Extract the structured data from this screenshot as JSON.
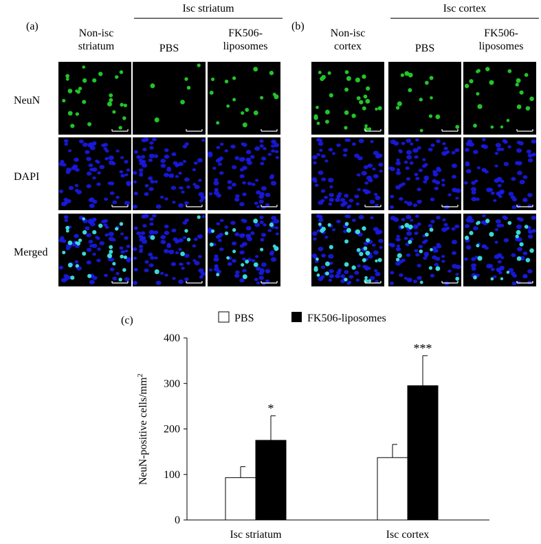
{
  "figure": {
    "panel_a": {
      "letter": "(a)",
      "group_header": "Isc striatum",
      "columns": [
        [
          "Non-isc",
          "striatum"
        ],
        [
          "PBS"
        ],
        [
          "FK506-",
          "liposomes"
        ]
      ]
    },
    "panel_b": {
      "letter": "(b)",
      "group_header": "Isc cortex",
      "columns": [
        [
          "Non-isc",
          "cortex"
        ],
        [
          "PBS"
        ],
        [
          "FK506-",
          "liposomes"
        ]
      ]
    },
    "row_labels": [
      "NeuN",
      "DAPI",
      "Merged"
    ],
    "stain_colors": {
      "neun": "#22c42a",
      "dapi": "#1a1ae6",
      "merged_overlap": "#3ad8d8",
      "background": "#000000",
      "scale_bar": "#ffffff"
    },
    "panel_c": {
      "letter": "(c)"
    }
  },
  "chart_data": {
    "type": "bar",
    "categories": [
      "Isc striatum",
      "Isc cortex"
    ],
    "series": [
      {
        "name": "PBS",
        "values": [
          93,
          137
        ],
        "errors": [
          24,
          29
        ],
        "fill": "#ffffff"
      },
      {
        "name": "FK506-liposomes",
        "values": [
          175,
          295
        ],
        "errors": [
          54,
          66
        ],
        "fill": "#000000"
      }
    ],
    "significance": [
      "*",
      "***"
    ],
    "ylabel": "NeuN-positive cells/mm",
    "ylabel_superscript": "2",
    "ylim": [
      0,
      400
    ],
    "yticks": [
      "0",
      "100",
      "200",
      "300",
      "400"
    ],
    "legend_position": "top"
  }
}
